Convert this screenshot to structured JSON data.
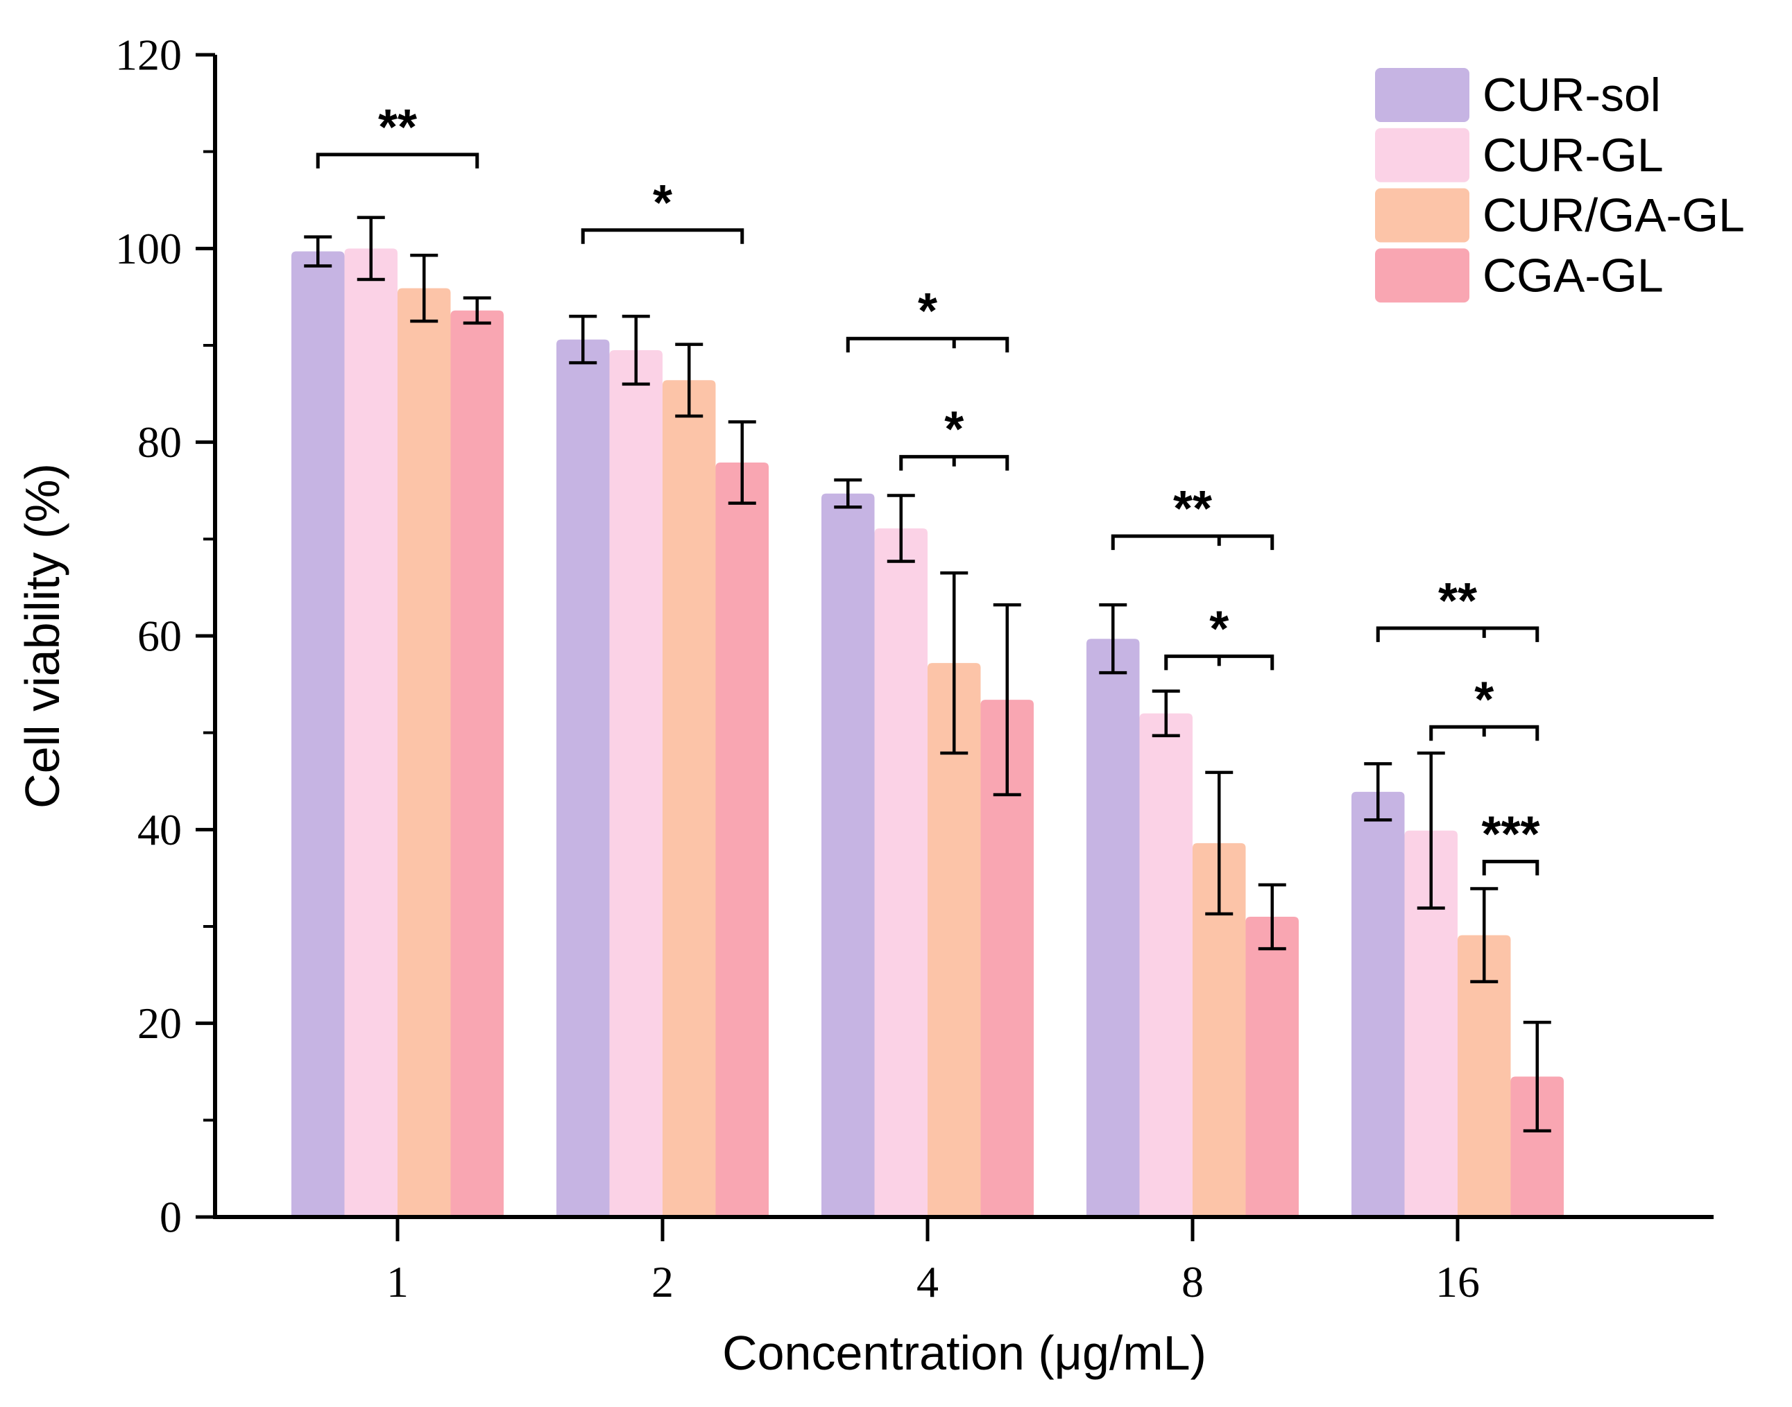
{
  "figure": {
    "description": "Grouped bar chart of cell viability versus drug concentration with error bars and significance brackets",
    "background": "#ffffff",
    "text_color": "#000000"
  },
  "chart_data": {
    "type": "bar",
    "title": "",
    "xlabel": "Concentration (μg/mL)",
    "ylabel": "Cell viability (%)",
    "categories": [
      "1",
      "2",
      "4",
      "8",
      "16"
    ],
    "ylim": [
      0,
      120
    ],
    "y_major_ticks": [
      0,
      20,
      40,
      60,
      80,
      100,
      120
    ],
    "y_minor_tick_step": 10,
    "grid": false,
    "legend_position": "top-right",
    "series": [
      {
        "name": "CUR-sol",
        "color": "#c6b4e3",
        "values": [
          99.7,
          90.6,
          74.7,
          59.7,
          43.9
        ],
        "errors": [
          1.5,
          2.4,
          1.4,
          3.5,
          2.9
        ]
      },
      {
        "name": "CUR-GL",
        "color": "#fbd2e6",
        "values": [
          100.0,
          89.5,
          71.1,
          52.0,
          39.9
        ],
        "errors": [
          3.2,
          3.5,
          3.4,
          2.3,
          8.0
        ]
      },
      {
        "name": "CUR/GA-GL",
        "color": "#fcc4a8",
        "values": [
          95.9,
          86.4,
          57.2,
          38.6,
          29.1
        ],
        "errors": [
          3.4,
          3.7,
          9.3,
          7.3,
          4.8
        ]
      },
      {
        "name": "CGA-GL",
        "color": "#f9a6b2",
        "values": [
          93.6,
          77.9,
          53.4,
          31.0,
          14.5
        ],
        "errors": [
          1.3,
          4.2,
          9.8,
          3.3,
          5.6
        ]
      }
    ],
    "significance_brackets": [
      {
        "group": 0,
        "from": 0,
        "to": 3,
        "label": "**",
        "y": 109.7,
        "mid_tick": null
      },
      {
        "group": 1,
        "from": 0,
        "to": 3,
        "label": "*",
        "y": 101.9,
        "mid_tick": null
      },
      {
        "group": 2,
        "from": 0,
        "to": 3,
        "label": "*",
        "y": 90.7,
        "mid_tick": 2
      },
      {
        "group": 2,
        "from": 1,
        "to": 3,
        "label": "*",
        "y": 78.5,
        "mid_tick": 2
      },
      {
        "group": 3,
        "from": 0,
        "to": 3,
        "label": "**",
        "y": 70.3,
        "mid_tick": 2
      },
      {
        "group": 3,
        "from": 1,
        "to": 3,
        "label": "*",
        "y": 57.9,
        "mid_tick": 2
      },
      {
        "group": 4,
        "from": 0,
        "to": 3,
        "label": "**",
        "y": 60.8,
        "mid_tick": 2
      },
      {
        "group": 4,
        "from": 1,
        "to": 3,
        "label": "*",
        "y": 50.6,
        "mid_tick": 2
      },
      {
        "group": 4,
        "from": 2,
        "to": 3,
        "label": "***",
        "y": 36.7,
        "mid_tick": null
      }
    ]
  }
}
